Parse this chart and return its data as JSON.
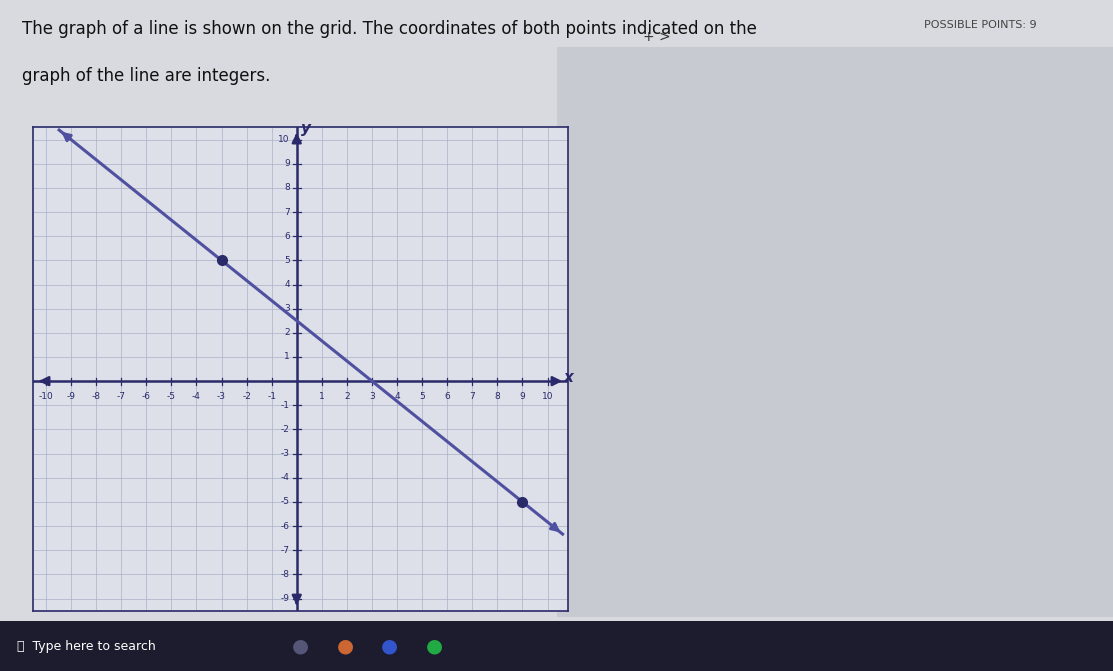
{
  "point1": [
    -3,
    5
  ],
  "point2": [
    9,
    -5
  ],
  "xlim": [
    -10,
    10
  ],
  "ylim": [
    -9,
    10
  ],
  "xticks": [
    -10,
    -9,
    -8,
    -7,
    -6,
    -5,
    -4,
    -3,
    -2,
    -1,
    1,
    2,
    3,
    4,
    5,
    6,
    7,
    8,
    9,
    10
  ],
  "yticks": [
    -9,
    -8,
    -7,
    -6,
    -5,
    -4,
    -3,
    -2,
    -1,
    1,
    2,
    3,
    4,
    5,
    6,
    7,
    8,
    9,
    10
  ],
  "line_color": "#5050a0",
  "line_width": 2.2,
  "point_color": "#2a2a6a",
  "point_size": 7,
  "grid_color": "#aab0c8",
  "axis_color": "#2a2a6a",
  "background_color": "#d8dae0",
  "plot_bg_color": "#dde0e8",
  "text_color": "#111111",
  "right_bg_color": "#c8cad2",
  "xlabel": "x",
  "ylabel": "y",
  "fig_width": 11.13,
  "fig_height": 6.71,
  "possible_points_text": "POSSIBLE POINTS: 9",
  "instruction_line1": "The graph of a line is shown on the grid. The coordinates of both points indicated on the",
  "instruction_line2": "graph of the line are integers.",
  "taskbar_color": "#1c1c2e",
  "search_text": "⌕  Type here to search"
}
